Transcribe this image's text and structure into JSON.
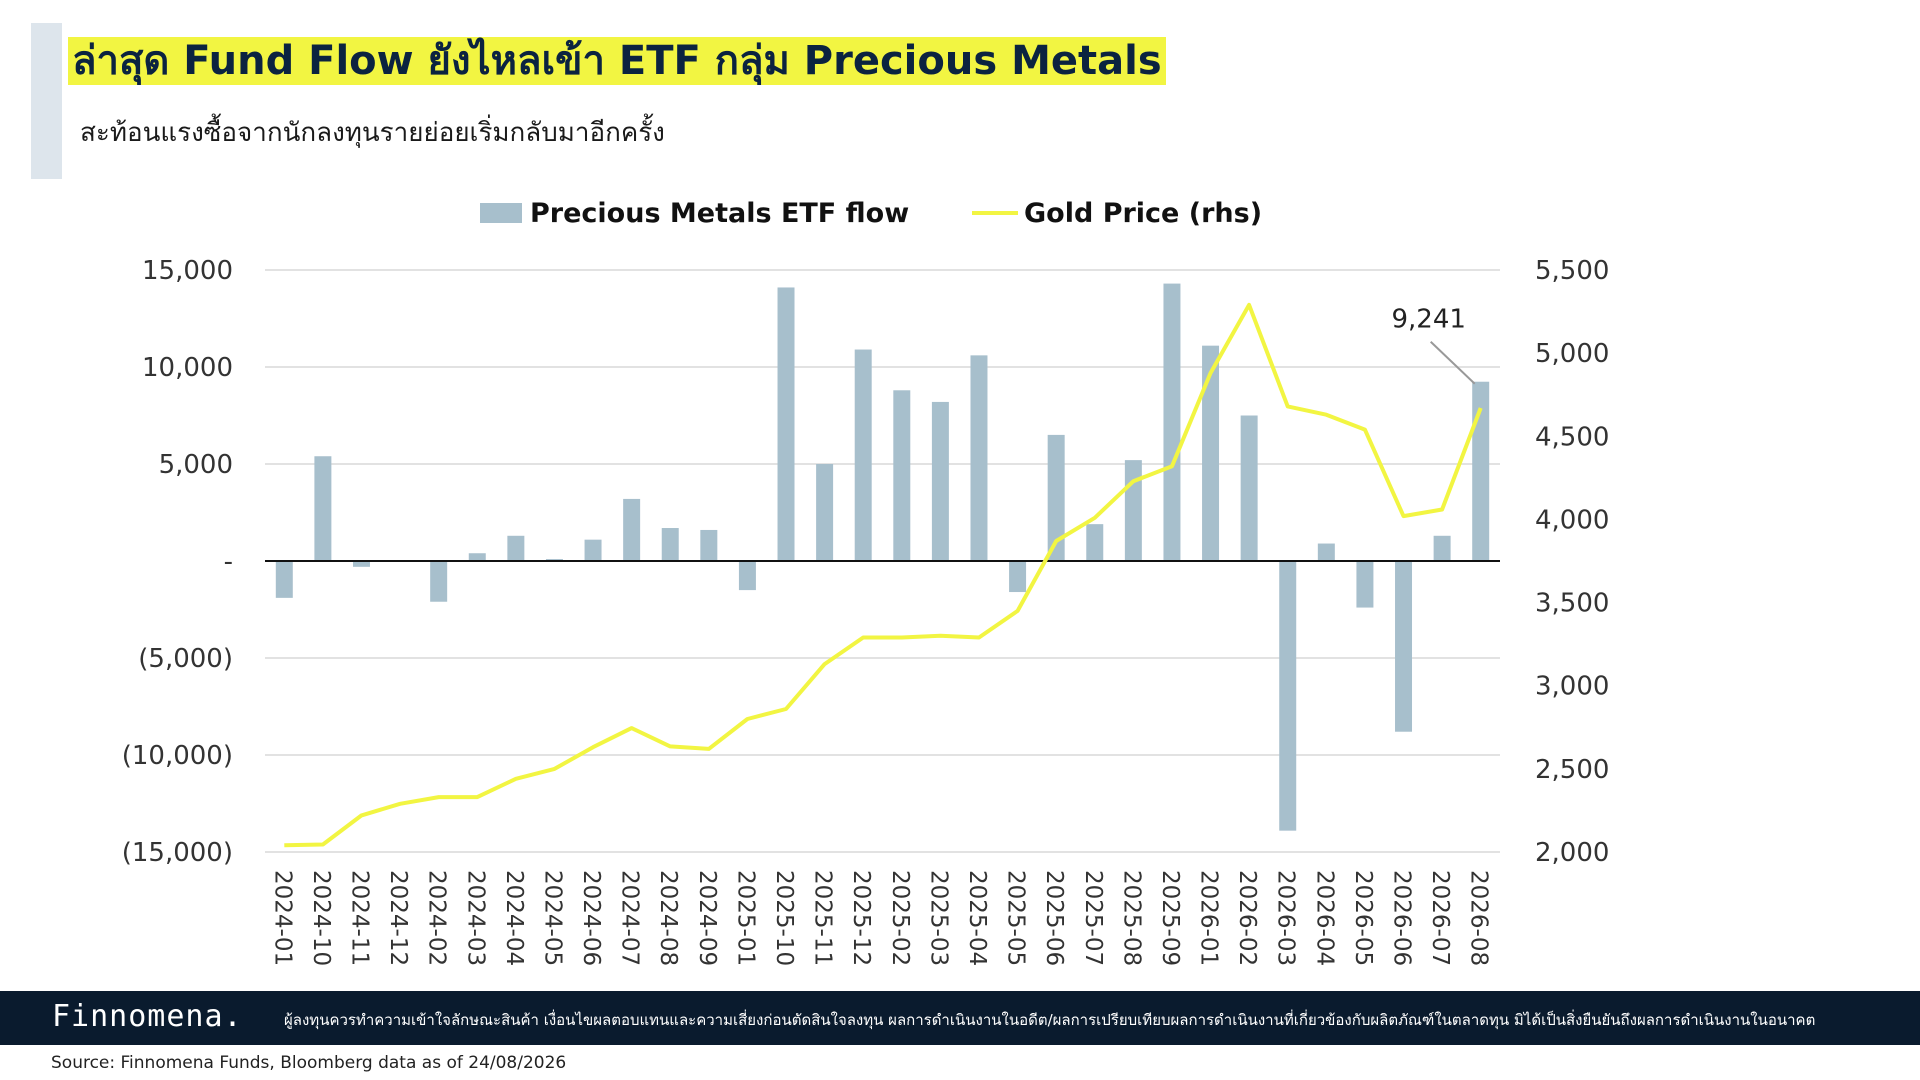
{
  "header": {
    "title": "ล่าสุด Fund Flow ยังไหลเข้า ETF กลุ่ม Precious Metals",
    "subtitle": "สะท้อนแรงซื้อจากนักลงทุนรายย่อยเริ่มกลับมาอีกครั้ง"
  },
  "footer": {
    "brand": "Finnomena.",
    "disclaimer": "ผู้ลงทุนควรทำความเข้าใจลักษณะสินค้า เงื่อนไขผลตอบแทนและความเสี่ยงก่อนตัดสินใจลงทุน ผลการดำเนินงานในอดีต/ผลการเปรียบเทียบผลการดำเนินงานที่เกี่ยวข้องกับผลิตภัณฑ์ในตลาดทุน มิได้เป็นสิ่งยืนยันถึงผลการดำเนินงานในอนาคต",
    "source": "Source: Finnomena Funds, Bloomberg data as of 24/08/2026"
  },
  "chart_data": {
    "type": "bar",
    "categories": [
      "2024-01",
      "2024-10",
      "2024-11",
      "2024-12",
      "2024-02",
      "2024-03",
      "2024-04",
      "2024-05",
      "2024-06",
      "2024-07",
      "2024-08",
      "2024-09",
      "2025-01",
      "2025-10",
      "2025-11",
      "2025-12",
      "2025-02",
      "2025-03",
      "2025-04",
      "2025-05",
      "2025-06",
      "2025-07",
      "2025-08",
      "2025-09",
      "2026-01",
      "2026-02",
      "2026-03",
      "2026-04",
      "2026-05",
      "2026-06",
      "2026-07",
      "2026-08"
    ],
    "series": [
      {
        "name": "Precious Metals ETF flow",
        "type": "bar",
        "axis": "left",
        "color": "#a7bfcc",
        "values": [
          -1900,
          5400,
          -300,
          0,
          -2100,
          400,
          1300,
          100,
          1100,
          3200,
          1700,
          1600,
          -1500,
          14100,
          5000,
          10900,
          8800,
          8200,
          10600,
          -1600,
          6500,
          1900,
          5200,
          14300,
          11100,
          7500,
          -13900,
          900,
          -2400,
          -8800,
          1300,
          9241
        ]
      },
      {
        "name": "Gold Price (rhs)",
        "type": "line",
        "axis": "right",
        "color": "#f2f542",
        "values": [
          2040,
          2045,
          2220,
          2290,
          2330,
          2330,
          2440,
          2500,
          2630,
          2745,
          2635,
          2620,
          2800,
          2860,
          3130,
          3290,
          3290,
          3300,
          3290,
          3450,
          3870,
          4010,
          4230,
          4320,
          4880,
          5290,
          4680,
          4630,
          4540,
          4020,
          4060,
          4670
        ]
      }
    ],
    "left_axis": {
      "ticks": [
        15000,
        10000,
        5000,
        0,
        -5000,
        -10000,
        -15000
      ],
      "tick_labels": [
        "15,000",
        "10,000",
        "5,000",
        "-",
        "(5,000)",
        "(10,000)",
        "(15,000)"
      ],
      "ylim": [
        -15000,
        15000
      ]
    },
    "right_axis": {
      "ticks": [
        5500,
        5000,
        4500,
        4000,
        3500,
        3000,
        2500,
        2000
      ],
      "tick_labels": [
        "5,500",
        "5,000",
        "4,500",
        "4,000",
        "3,500",
        "3,000",
        "2,500",
        "2,000"
      ],
      "ylim": [
        2000,
        5500
      ]
    },
    "annotation": {
      "text": "9,241",
      "category": "2026-08"
    },
    "grid": true,
    "legend": "top-center"
  }
}
